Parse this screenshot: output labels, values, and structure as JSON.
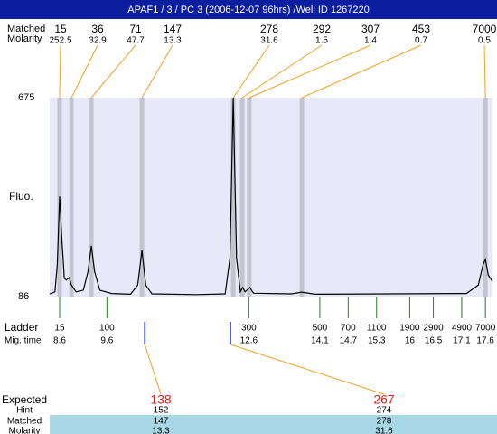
{
  "header": {
    "title": "APAF1 / 3 / PC 3 (2006-12-07 96hrs) /Well ID 1267220"
  },
  "chart_data": {
    "type": "line",
    "ylabel": "Fluo.",
    "xlim": [
      8.39,
      17.75
    ],
    "ylim": [
      86,
      675
    ],
    "yticks": [
      86,
      675
    ],
    "color": "#000000",
    "x": [
      8.39,
      8.5,
      8.55,
      8.6,
      8.65,
      8.7,
      8.74,
      8.8,
      8.85,
      8.95,
      9.1,
      9.2,
      9.27,
      9.34,
      9.45,
      9.7,
      10.1,
      10.25,
      10.34,
      10.42,
      10.55,
      11.5,
      12.1,
      12.2,
      12.27,
      12.34,
      12.42,
      12.47,
      12.52,
      12.62,
      12.7,
      13.5,
      13.72,
      14,
      17.2,
      17.45,
      17.55,
      17.6,
      17.66,
      17.75
    ],
    "values": [
      94,
      100,
      180,
      383,
      250,
      140,
      135,
      142,
      120,
      100,
      105,
      160,
      236,
      160,
      105,
      95,
      93,
      120,
      223,
      120,
      94,
      92,
      94,
      200,
      675,
      200,
      100,
      113,
      100,
      113,
      96,
      94,
      99,
      93,
      95,
      120,
      180,
      196,
      150,
      130
    ],
    "peaks": {
      "row_labels": [
        "Matched",
        "Molarity"
      ],
      "times": [
        8.6,
        8.85,
        9.27,
        10.34,
        12.27,
        12.46,
        12.61,
        13.72,
        17.6
      ],
      "sizes": [
        15,
        36,
        71,
        147,
        278,
        292,
        307,
        453,
        7000
      ],
      "molarity": [
        252.5,
        32.9,
        47.7,
        13.3,
        31.6,
        1.5,
        1.4,
        0.7,
        0.5
      ]
    },
    "ladder": {
      "row_labels": [
        "Ladder",
        "Mig. time"
      ],
      "sizes": [
        15,
        100,
        300,
        500,
        700,
        1100,
        1900,
        2900,
        4900,
        7000
      ],
      "times": [
        8.6,
        9.6,
        12.6,
        14.1,
        14.7,
        15.3,
        16,
        16.5,
        17.1,
        17.6
      ]
    },
    "expected": {
      "row_labels": [
        "Expected",
        "Hint",
        "Matched",
        "Molarity"
      ],
      "times": [
        10.4,
        12.21
      ],
      "expected": [
        138,
        267
      ],
      "hint": [
        152,
        274
      ],
      "matched": [
        147,
        278
      ],
      "molarity": [
        13.3,
        31.6
      ]
    }
  }
}
